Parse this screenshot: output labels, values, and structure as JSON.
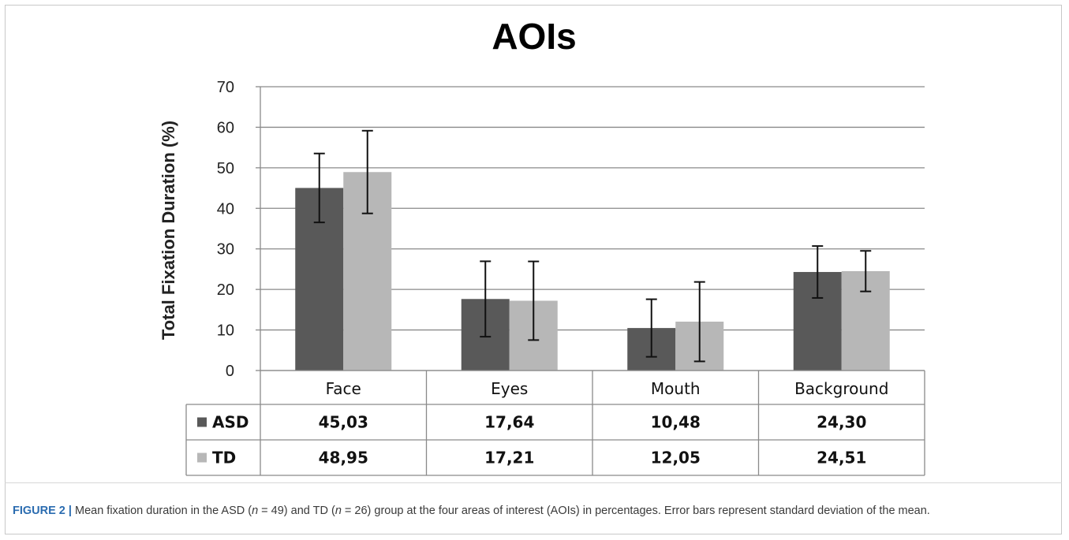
{
  "chart_data": {
    "type": "bar",
    "title": "AOIs",
    "ylabel": "Total Fixation Duration (%)",
    "xlabel": "",
    "ylim": [
      0,
      70
    ],
    "yticks": [
      0,
      10,
      20,
      30,
      40,
      50,
      60,
      70
    ],
    "grid": true,
    "error_bars": true,
    "categories": [
      "Face",
      "Eyes",
      "Mouth",
      "Background"
    ],
    "series": [
      {
        "name": "ASD",
        "color": "#595959",
        "values": [
          45.03,
          17.64,
          10.48,
          24.3
        ],
        "errors": [
          8.5,
          9.3,
          7.1,
          6.4
        ],
        "labels": [
          "45,03",
          "17,64",
          "10,48",
          "24,30"
        ]
      },
      {
        "name": "TD",
        "color": "#b7b7b7",
        "values": [
          48.95,
          17.21,
          12.05,
          24.51
        ],
        "errors": [
          10.2,
          9.7,
          9.8,
          5.0
        ],
        "labels": [
          "48,95",
          "17,21",
          "12,05",
          "24,51"
        ]
      }
    ]
  },
  "caption": {
    "label": "FIGURE 2",
    "separator": " | ",
    "parts": [
      {
        "t": "Mean fixation duration in the ASD ("
      },
      {
        "t": "n",
        "i": true
      },
      {
        "t": " = 49) and TD ("
      },
      {
        "t": "n",
        "i": true
      },
      {
        "t": " = 26) group at the four areas of interest (AOIs) in percentages. Error bars represent standard deviation of the mean."
      }
    ]
  }
}
